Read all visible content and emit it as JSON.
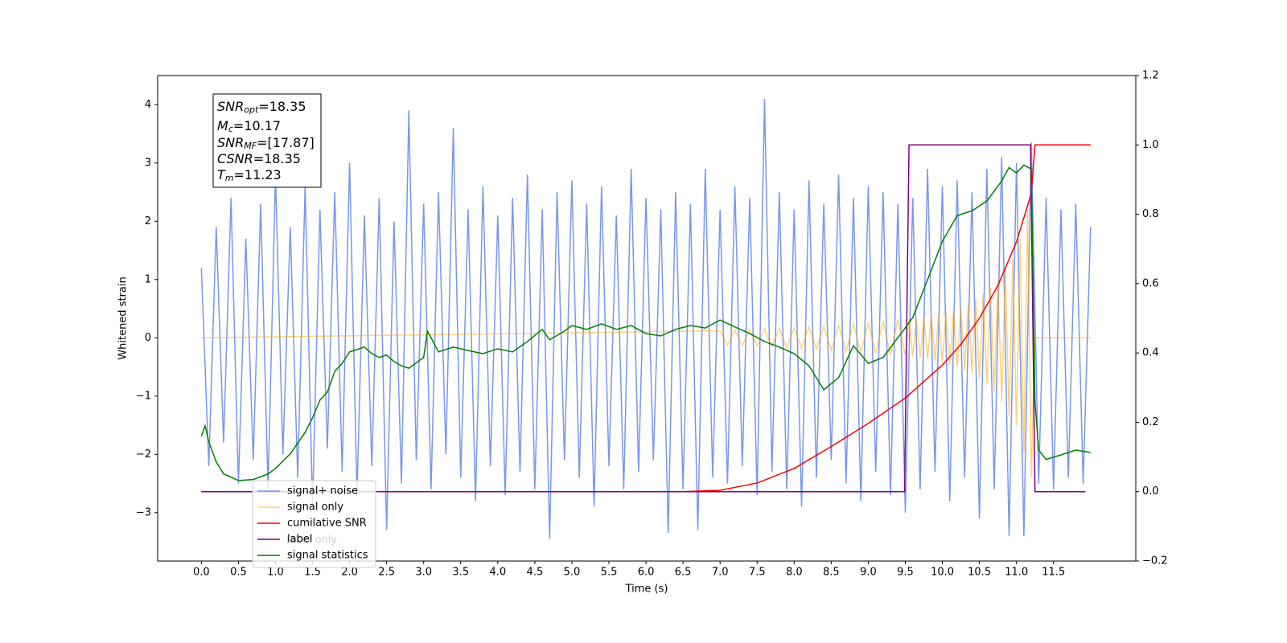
{
  "chart_data": {
    "type": "line",
    "xlabel": "Time (s)",
    "ylabel": "Whitened strain",
    "xlim": [
      -0.59,
      12.61
    ],
    "ylim": [
      -3.83,
      4.5
    ],
    "y2lim": [
      -0.2,
      1.2
    ],
    "xticks": [
      {
        "value": 0,
        "label": "0.0"
      },
      0.5,
      {
        "value": 1,
        "label": "1.0"
      },
      1.5,
      {
        "value": 2,
        "label": "2.0"
      },
      2.5,
      {
        "value": 3,
        "label": "3.0"
      },
      3.5,
      {
        "value": 4,
        "label": "4.0"
      },
      4.5,
      {
        "value": 5,
        "label": "5.0"
      },
      5.5,
      {
        "value": 6,
        "label": "6.0"
      },
      6.5,
      {
        "value": 7,
        "label": "7.0"
      },
      7.5,
      {
        "value": 8,
        "label": "8.0"
      },
      8.5,
      {
        "value": 9,
        "label": "9.0"
      },
      9.5,
      {
        "value": 10,
        "label": "10.0"
      },
      10.5,
      {
        "value": 11,
        "label": "11.0"
      },
      11.5
    ],
    "yticks": [
      {
        "value": -3,
        "label": "−3"
      },
      {
        "value": -2,
        "label": "−2"
      },
      {
        "value": -1,
        "label": "−1"
      },
      0,
      1,
      2,
      3,
      4
    ],
    "y2ticks": [
      {
        "value": -0.2,
        "label": "−0.2"
      },
      {
        "value": 0,
        "label": "0.0"
      },
      0.2,
      0.4,
      0.6,
      0.8,
      {
        "value": 1,
        "label": "1.0"
      },
      1.2
    ],
    "legend": "lower left",
    "hidden_legend_text": "label only",
    "annotation": [
      {
        "base": "SNR",
        "sub": "opt",
        "text": "=18.35"
      },
      {
        "base": "M",
        "sub": "c",
        "text": "=10.17"
      },
      {
        "base": "SNR",
        "sub": "MF",
        "text": "=[17.87]"
      },
      {
        "base": "CSNR",
        "text": "=18.35"
      },
      {
        "base": "T",
        "sub": "m",
        "text": "=11.23"
      }
    ],
    "series": [
      {
        "name": "signal+ noise",
        "color": "#4169e1",
        "opacity": 0.7,
        "x": [
          0,
          0.1,
          0.2,
          0.3,
          0.4,
          0.5,
          0.6,
          0.7,
          0.8,
          0.9,
          1,
          1.1,
          1.2,
          1.3,
          1.4,
          1.5,
          1.6,
          1.7,
          1.8,
          1.9,
          2,
          2.1,
          2.2,
          2.3,
          2.4,
          2.5,
          2.6,
          2.7,
          2.8,
          2.9,
          3,
          3.1,
          3.2,
          3.3,
          3.4,
          3.5,
          3.6,
          3.7,
          3.8,
          3.9,
          4,
          4.1,
          4.2,
          4.3,
          4.4,
          4.5,
          4.6,
          4.7,
          4.8,
          4.9,
          5,
          5.1,
          5.2,
          5.3,
          5.4,
          5.5,
          5.6,
          5.7,
          5.8,
          5.9,
          6,
          6.1,
          6.2,
          6.3,
          6.4,
          6.5,
          6.6,
          6.7,
          6.8,
          6.9,
          7,
          7.1,
          7.2,
          7.3,
          7.4,
          7.5,
          7.6,
          7.7,
          7.8,
          7.9,
          8,
          8.1,
          8.2,
          8.3,
          8.4,
          8.5,
          8.6,
          8.7,
          8.8,
          8.9,
          9,
          9.1,
          9.2,
          9.3,
          9.4,
          9.5,
          9.6,
          9.7,
          9.8,
          9.9,
          10,
          10.1,
          10.2,
          10.3,
          10.4,
          10.5,
          10.6,
          10.7,
          10.8,
          10.9,
          11,
          11.1,
          11.2,
          11.3,
          11.4,
          11.5,
          11.6,
          11.7,
          11.8,
          11.9,
          12
        ],
        "values": [
          1.2,
          -2.2,
          1.9,
          -1.8,
          2.4,
          -2.5,
          1.7,
          -2.1,
          2.3,
          -2.6,
          2.8,
          -2.0,
          1.9,
          -2.4,
          2.6,
          -2.9,
          2.2,
          -1.9,
          2.5,
          -2.3,
          3.0,
          -2.7,
          2.1,
          -2.2,
          2.4,
          -3.3,
          2.0,
          -2.5,
          3.9,
          -2.1,
          2.3,
          -2.6,
          2.5,
          -2.0,
          3.6,
          -2.4,
          2.2,
          -2.8,
          2.6,
          -2.2,
          2.1,
          -2.7,
          2.4,
          -2.3,
          2.8,
          -2.6,
          2.2,
          -3.45,
          2.5,
          -2.1,
          2.7,
          -2.4,
          2.3,
          -2.9,
          2.6,
          -2.2,
          2.1,
          -2.6,
          2.9,
          -2.3,
          2.4,
          -2.1,
          2.2,
          -3.35,
          2.5,
          -2.6,
          2.3,
          -3.3,
          2.9,
          -2.4,
          2.2,
          -2.5,
          2.6,
          -2.2,
          2.4,
          -2.7,
          4.1,
          -2.3,
          2.5,
          -2.6,
          2.2,
          -2.9,
          2.7,
          -2.4,
          2.3,
          -2.1,
          2.8,
          -2.5,
          2.4,
          -2.8,
          2.6,
          -2.3,
          2.5,
          -2.7,
          2.3,
          -3.0,
          2.4,
          -2.6,
          2.9,
          -2.3,
          2.6,
          -2.8,
          2.7,
          -2.4,
          2.5,
          -3.1,
          2.9,
          -2.6,
          3.1,
          -3.4,
          3.0,
          -3.4,
          3.35,
          -2.5,
          2.4,
          -2.6,
          2.2,
          -2.4,
          2.3,
          -2.5,
          1.9
        ]
      },
      {
        "name": "signal only",
        "color": "#ffa500",
        "opacity": 0.5,
        "x": [
          0,
          7,
          7.1,
          7.2,
          7.3,
          7.4,
          7.5,
          7.6,
          7.7,
          7.8,
          7.9,
          8,
          8.1,
          8.2,
          8.3,
          8.4,
          8.5,
          8.6,
          8.7,
          8.8,
          8.9,
          9,
          9.1,
          9.2,
          9.3,
          9.4,
          9.5,
          9.55,
          9.6,
          9.65,
          9.7,
          9.75,
          9.8,
          9.85,
          9.9,
          9.95,
          10,
          10.05,
          10.1,
          10.15,
          10.2,
          10.25,
          10.3,
          10.35,
          10.4,
          10.45,
          10.5,
          10.55,
          10.6,
          10.65,
          10.7,
          10.75,
          10.8,
          10.85,
          10.9,
          10.95,
          11,
          11.05,
          11.1,
          11.15,
          11.2,
          11.25,
          12
        ],
        "values": [
          0,
          0.12,
          -0.12,
          0.13,
          -0.13,
          0.14,
          -0.14,
          0.15,
          -0.15,
          0.16,
          -0.17,
          0.17,
          -0.18,
          0.19,
          -0.19,
          0.2,
          -0.21,
          0.22,
          -0.23,
          0.24,
          -0.25,
          0.26,
          -0.27,
          0.29,
          -0.3,
          0.32,
          -0.3,
          0.31,
          -0.32,
          0.33,
          -0.34,
          0.35,
          -0.36,
          0.38,
          -0.39,
          0.41,
          -0.42,
          0.44,
          -0.46,
          0.48,
          -0.5,
          0.53,
          -0.56,
          0.59,
          -0.62,
          0.66,
          -0.7,
          0.75,
          -0.8,
          0.86,
          -0.93,
          1.0,
          -1.09,
          1.2,
          -1.33,
          1.35,
          -1.5,
          1.7,
          -1.95,
          2.2,
          -2.4,
          0,
          0
        ]
      },
      {
        "name": "cumilative SNR",
        "color": "#ff0000",
        "axis": "y2",
        "x": [
          0,
          6.5,
          7,
          7.5,
          8,
          8.5,
          9,
          9.5,
          10,
          10.25,
          10.5,
          10.75,
          11,
          11.1,
          11.2,
          11.25,
          12
        ],
        "values": [
          0,
          0,
          0.004,
          0.025,
          0.067,
          0.13,
          0.197,
          0.27,
          0.365,
          0.425,
          0.5,
          0.595,
          0.72,
          0.79,
          0.86,
          1.0,
          1.0
        ]
      },
      {
        "name": "label",
        "color": "#800080",
        "axis": "y2",
        "x": [
          0,
          9.49,
          9.55,
          11.19,
          11.25,
          11.93
        ],
        "values": [
          0,
          0,
          1,
          1,
          0,
          0
        ]
      },
      {
        "name": "signal statistics",
        "color": "#008000",
        "axis": "y2",
        "x": [
          0,
          0.05,
          0.1,
          0.2,
          0.3,
          0.4,
          0.5,
          0.7,
          0.9,
          1,
          1.2,
          1.4,
          1.5,
          1.6,
          1.7,
          1.8,
          1.9,
          2,
          2.2,
          2.3,
          2.4,
          2.5,
          2.6,
          2.7,
          2.8,
          3,
          3.05,
          3.1,
          3.2,
          3.4,
          3.6,
          3.8,
          4,
          4.2,
          4.4,
          4.6,
          4.7,
          4.9,
          5,
          5.2,
          5.4,
          5.6,
          5.8,
          6,
          6.2,
          6.4,
          6.6,
          6.8,
          7,
          7.2,
          7.4,
          7.6,
          7.8,
          8,
          8.2,
          8.4,
          8.6,
          8.8,
          9,
          9.2,
          9.4,
          9.6,
          9.8,
          10,
          10.2,
          10.4,
          10.6,
          10.8,
          10.9,
          11,
          11.1,
          11.2,
          11.25,
          11.3,
          11.4,
          11.6,
          11.8,
          12
        ],
        "values": [
          0.16,
          0.19,
          0.144,
          0.086,
          0.051,
          0.042,
          0.032,
          0.035,
          0.051,
          0.067,
          0.109,
          0.171,
          0.213,
          0.264,
          0.287,
          0.347,
          0.37,
          0.403,
          0.417,
          0.398,
          0.387,
          0.394,
          0.375,
          0.363,
          0.356,
          0.387,
          0.463,
          0.444,
          0.403,
          0.417,
          0.407,
          0.398,
          0.412,
          0.403,
          0.433,
          0.468,
          0.438,
          0.463,
          0.479,
          0.468,
          0.484,
          0.468,
          0.479,
          0.456,
          0.449,
          0.468,
          0.479,
          0.472,
          0.495,
          0.475,
          0.456,
          0.433,
          0.417,
          0.398,
          0.363,
          0.294,
          0.329,
          0.421,
          0.37,
          0.387,
          0.444,
          0.502,
          0.611,
          0.722,
          0.796,
          0.81,
          0.838,
          0.896,
          0.935,
          0.919,
          0.942,
          0.93,
          0.259,
          0.12,
          0.093,
          0.106,
          0.12,
          0.113
        ]
      }
    ]
  }
}
